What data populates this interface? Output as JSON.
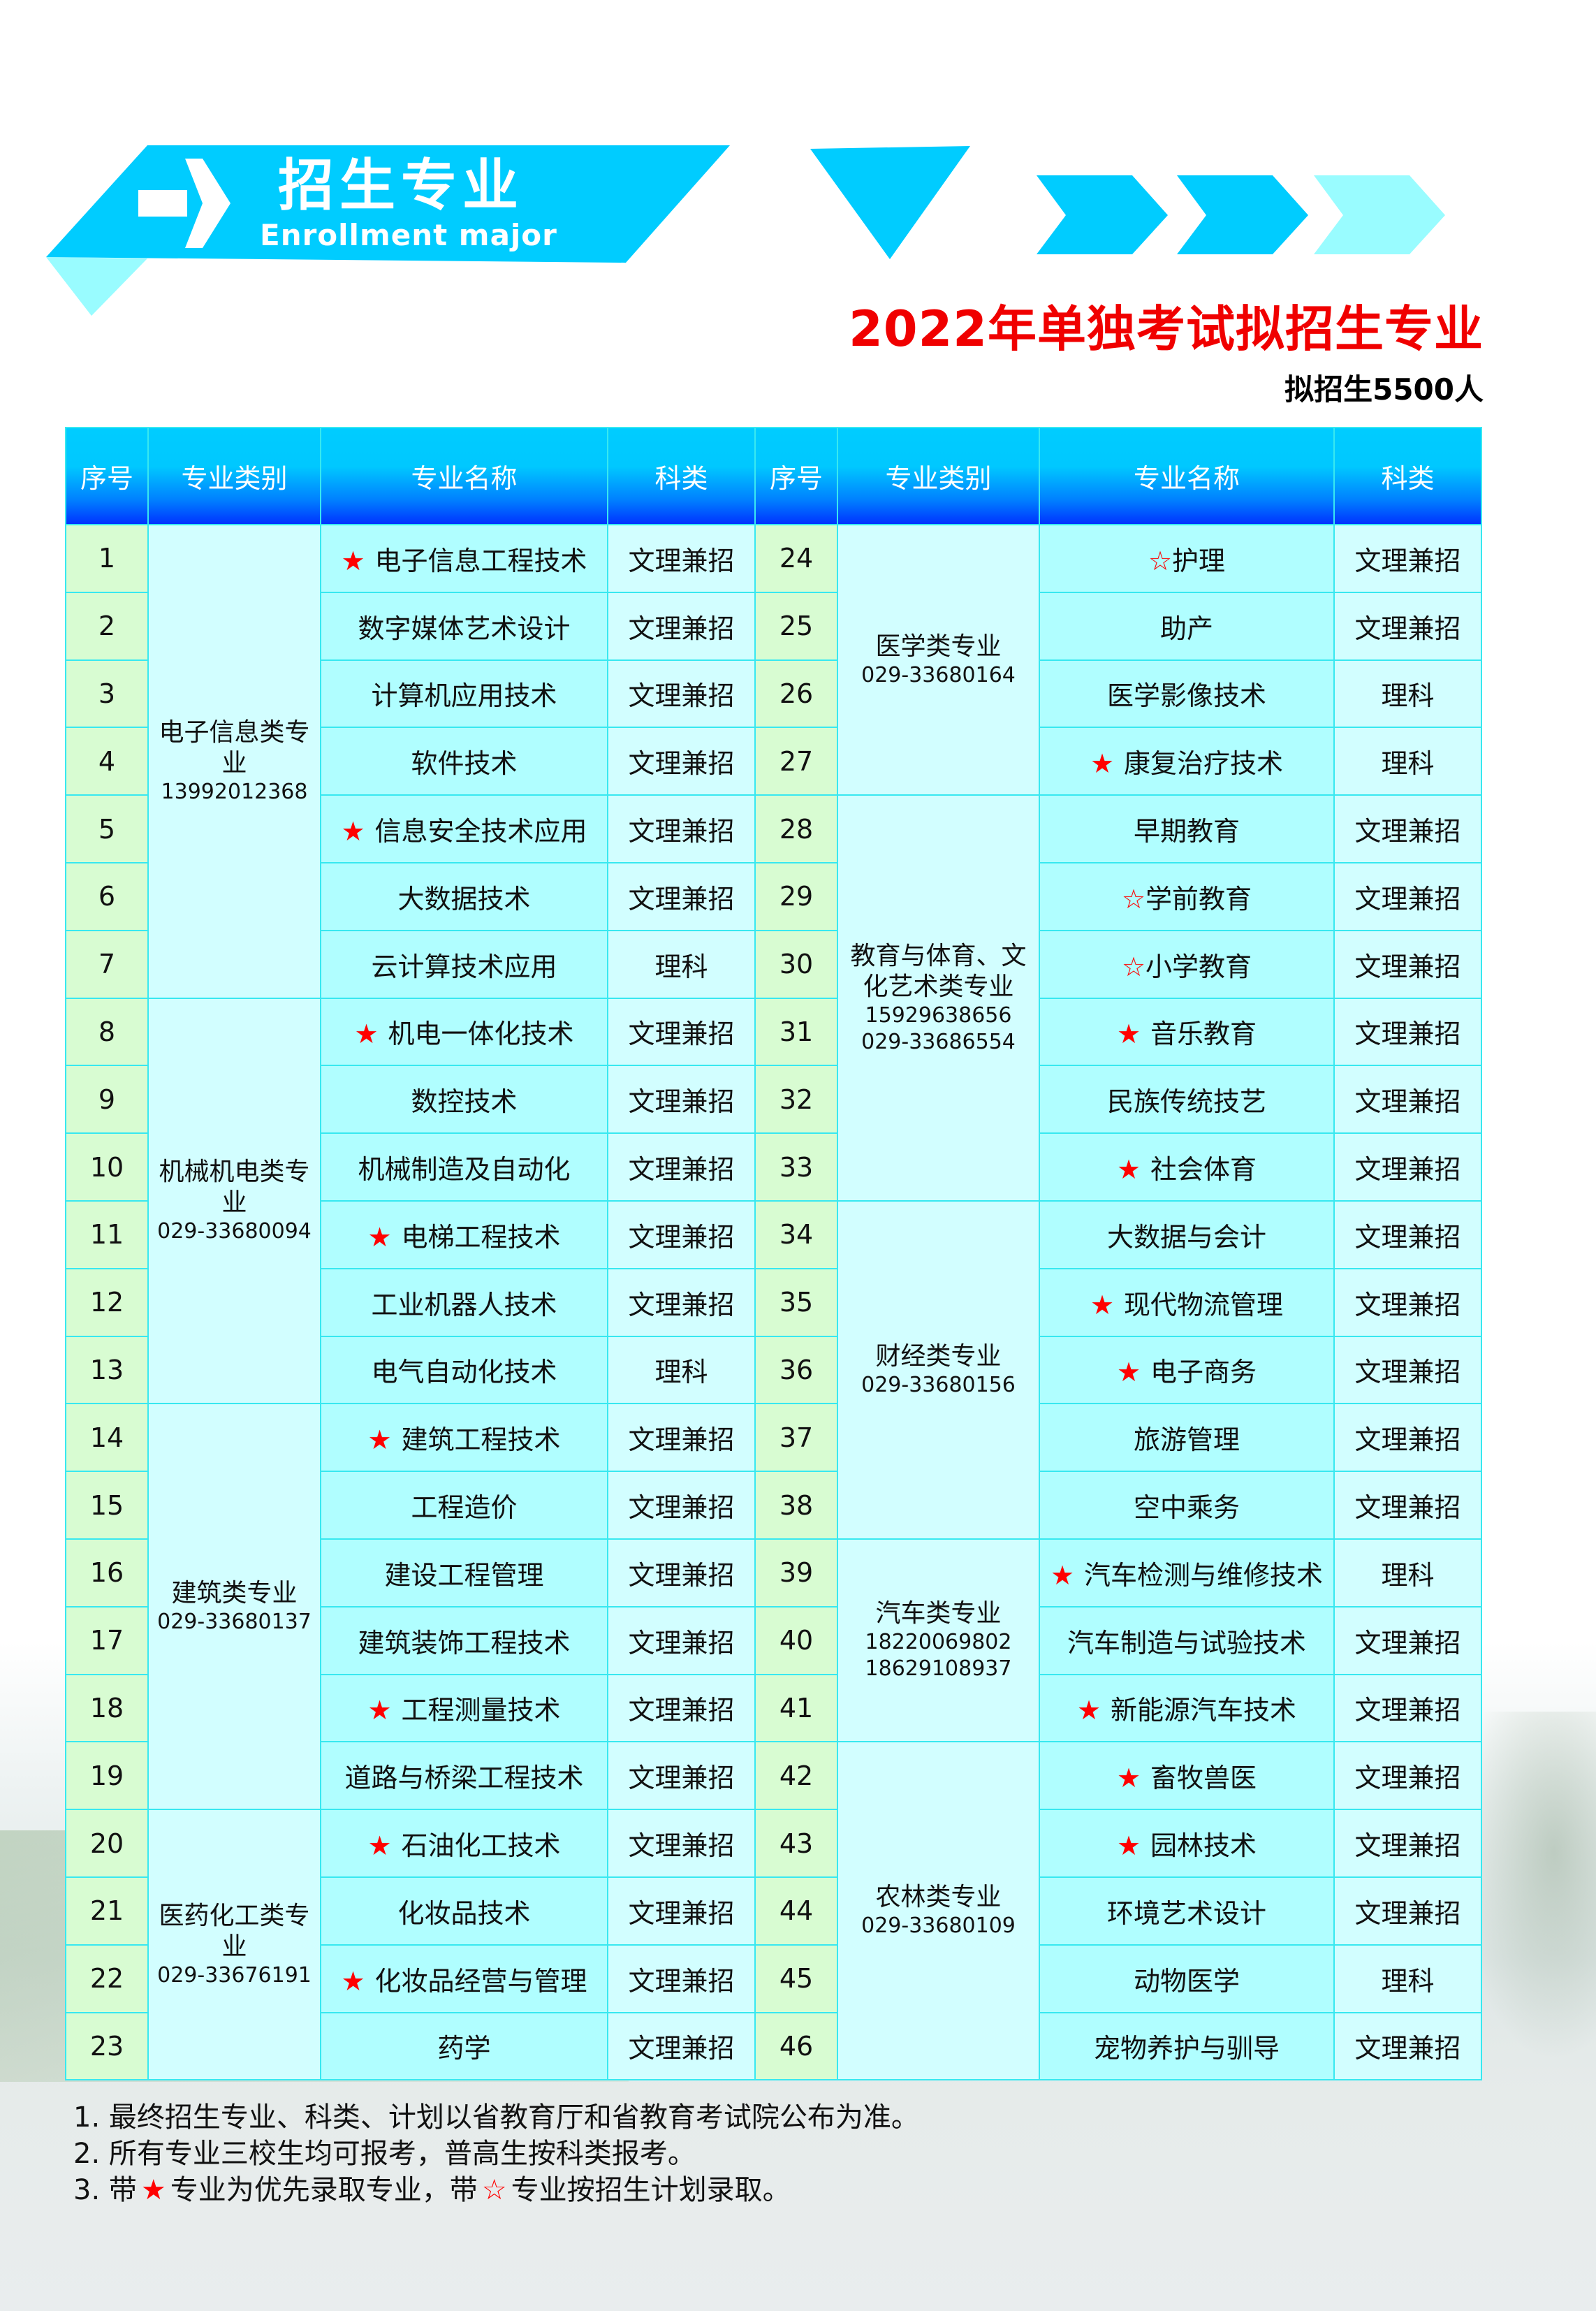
{
  "banner": {
    "title_cn": "招生专业",
    "title_en": "Enrollment major",
    "arrow_icon": "arrow-right-icon",
    "colors": {
      "primary": "#00ccff",
      "light": "#99fcff"
    }
  },
  "title": "2022年单独考试拟招生专业",
  "subtitle": "拟招生5500人",
  "table": {
    "headers": [
      "序号",
      "专业类别",
      "专业名称",
      "科类",
      "序号",
      "专业类别",
      "专业名称",
      "科类"
    ],
    "left": {
      "groups": [
        {
          "category": "电子信息类专业",
          "phones": [
            "13992012368"
          ],
          "rows": [
            {
              "no": "1",
              "name": "电子信息工程技术",
              "mark": "solid",
              "type": "文理兼招"
            },
            {
              "no": "2",
              "name": "数字媒体艺术设计",
              "mark": null,
              "type": "文理兼招"
            },
            {
              "no": "3",
              "name": "计算机应用技术",
              "mark": null,
              "type": "文理兼招"
            },
            {
              "no": "4",
              "name": "软件技术",
              "mark": null,
              "type": "文理兼招"
            },
            {
              "no": "5",
              "name": "信息安全技术应用",
              "mark": "solid",
              "type": "文理兼招"
            },
            {
              "no": "6",
              "name": "大数据技术",
              "mark": null,
              "type": "文理兼招"
            },
            {
              "no": "7",
              "name": "云计算技术应用",
              "mark": null,
              "type": "理科"
            }
          ]
        },
        {
          "category": "机械机电类专业",
          "phones": [
            "029-33680094"
          ],
          "rows": [
            {
              "no": "8",
              "name": "机电一体化技术",
              "mark": "solid",
              "type": "文理兼招"
            },
            {
              "no": "9",
              "name": "数控技术",
              "mark": null,
              "type": "文理兼招"
            },
            {
              "no": "10",
              "name": "机械制造及自动化",
              "mark": null,
              "type": "文理兼招"
            },
            {
              "no": "11",
              "name": "电梯工程技术",
              "mark": "solid",
              "type": "文理兼招"
            },
            {
              "no": "12",
              "name": "工业机器人技术",
              "mark": null,
              "type": "文理兼招"
            },
            {
              "no": "13",
              "name": "电气自动化技术",
              "mark": null,
              "type": "理科"
            }
          ]
        },
        {
          "category": "建筑类专业",
          "phones": [
            "029-33680137"
          ],
          "rows": [
            {
              "no": "14",
              "name": "建筑工程技术",
              "mark": "solid",
              "type": "文理兼招"
            },
            {
              "no": "15",
              "name": "工程造价",
              "mark": null,
              "type": "文理兼招"
            },
            {
              "no": "16",
              "name": "建设工程管理",
              "mark": null,
              "type": "文理兼招"
            },
            {
              "no": "17",
              "name": "建筑装饰工程技术",
              "mark": null,
              "type": "文理兼招"
            },
            {
              "no": "18",
              "name": "工程测量技术",
              "mark": "solid",
              "type": "文理兼招"
            },
            {
              "no": "19",
              "name": "道路与桥梁工程技术",
              "mark": null,
              "type": "文理兼招"
            }
          ]
        },
        {
          "category": "医药化工类专业",
          "phones": [
            "029-33676191"
          ],
          "rows": [
            {
              "no": "20",
              "name": "石油化工技术",
              "mark": "solid",
              "type": "文理兼招"
            },
            {
              "no": "21",
              "name": "化妆品技术",
              "mark": null,
              "type": "文理兼招"
            },
            {
              "no": "22",
              "name": "化妆品经营与管理",
              "mark": "solid",
              "type": "文理兼招"
            },
            {
              "no": "23",
              "name": "药学",
              "mark": null,
              "type": "文理兼招"
            }
          ]
        }
      ]
    },
    "right": {
      "groups": [
        {
          "category": "医学类专业",
          "phones": [
            "029-33680164"
          ],
          "rows": [
            {
              "no": "24",
              "name": "护理",
              "mark": "hollow",
              "type": "文理兼招"
            },
            {
              "no": "25",
              "name": "助产",
              "mark": null,
              "type": "文理兼招"
            },
            {
              "no": "26",
              "name": "医学影像技术",
              "mark": null,
              "type": "理科"
            },
            {
              "no": "27",
              "name": "康复治疗技术",
              "mark": "solid",
              "type": "理科"
            }
          ]
        },
        {
          "category": "教育与体育、文化艺术类专业",
          "phones": [
            "15929638656",
            "029-33686554"
          ],
          "rows": [
            {
              "no": "28",
              "name": "早期教育",
              "mark": null,
              "type": "文理兼招"
            },
            {
              "no": "29",
              "name": "学前教育",
              "mark": "hollow",
              "type": "文理兼招"
            },
            {
              "no": "30",
              "name": "小学教育",
              "mark": "hollow",
              "type": "文理兼招"
            },
            {
              "no": "31",
              "name": "音乐教育",
              "mark": "solid",
              "type": "文理兼招"
            },
            {
              "no": "32",
              "name": "民族传统技艺",
              "mark": null,
              "type": "文理兼招"
            },
            {
              "no": "33",
              "name": "社会体育",
              "mark": "solid",
              "type": "文理兼招"
            }
          ]
        },
        {
          "category": "财经类专业",
          "phones": [
            "029-33680156"
          ],
          "rows": [
            {
              "no": "34",
              "name": "大数据与会计",
              "mark": null,
              "type": "文理兼招"
            },
            {
              "no": "35",
              "name": "现代物流管理",
              "mark": "solid",
              "type": "文理兼招"
            },
            {
              "no": "36",
              "name": "电子商务",
              "mark": "solid",
              "type": "文理兼招"
            },
            {
              "no": "37",
              "name": "旅游管理",
              "mark": null,
              "type": "文理兼招"
            },
            {
              "no": "38",
              "name": "空中乘务",
              "mark": null,
              "type": "文理兼招"
            }
          ]
        },
        {
          "category": "汽车类专业",
          "phones": [
            "18220069802",
            "18629108937"
          ],
          "rows": [
            {
              "no": "39",
              "name": "汽车检测与维修技术",
              "mark": "solid",
              "type": "理科"
            },
            {
              "no": "40",
              "name": "汽车制造与试验技术",
              "mark": null,
              "type": "文理兼招"
            },
            {
              "no": "41",
              "name": "新能源汽车技术",
              "mark": "solid",
              "type": "文理兼招"
            }
          ]
        },
        {
          "category": "农林类专业",
          "phones": [
            "029-33680109"
          ],
          "rows": [
            {
              "no": "42",
              "name": "畜牧兽医",
              "mark": "solid",
              "type": "文理兼招"
            },
            {
              "no": "43",
              "name": "园林技术",
              "mark": "solid",
              "type": "文理兼招"
            },
            {
              "no": "44",
              "name": "环境艺术设计",
              "mark": null,
              "type": "文理兼招"
            },
            {
              "no": "45",
              "name": "动物医学",
              "mark": null,
              "type": "理科"
            },
            {
              "no": "46",
              "name": "宠物养护与驯导",
              "mark": null,
              "type": "文理兼招"
            }
          ]
        }
      ]
    }
  },
  "marks": {
    "solid": "★",
    "hollow": "☆",
    "color": "#ff0000"
  },
  "notes": [
    {
      "prefix": "1. 最终招生专业、科类、计划以省教育厅和省教育考试院公布为准。"
    },
    {
      "prefix": "2. 所有专业三校生均可报考，普高生按科类报考。"
    },
    {
      "prefix": "3. 带",
      "mid": "专业为优先录取专业，带",
      "suffix": "专业按招生计划录取。"
    }
  ]
}
